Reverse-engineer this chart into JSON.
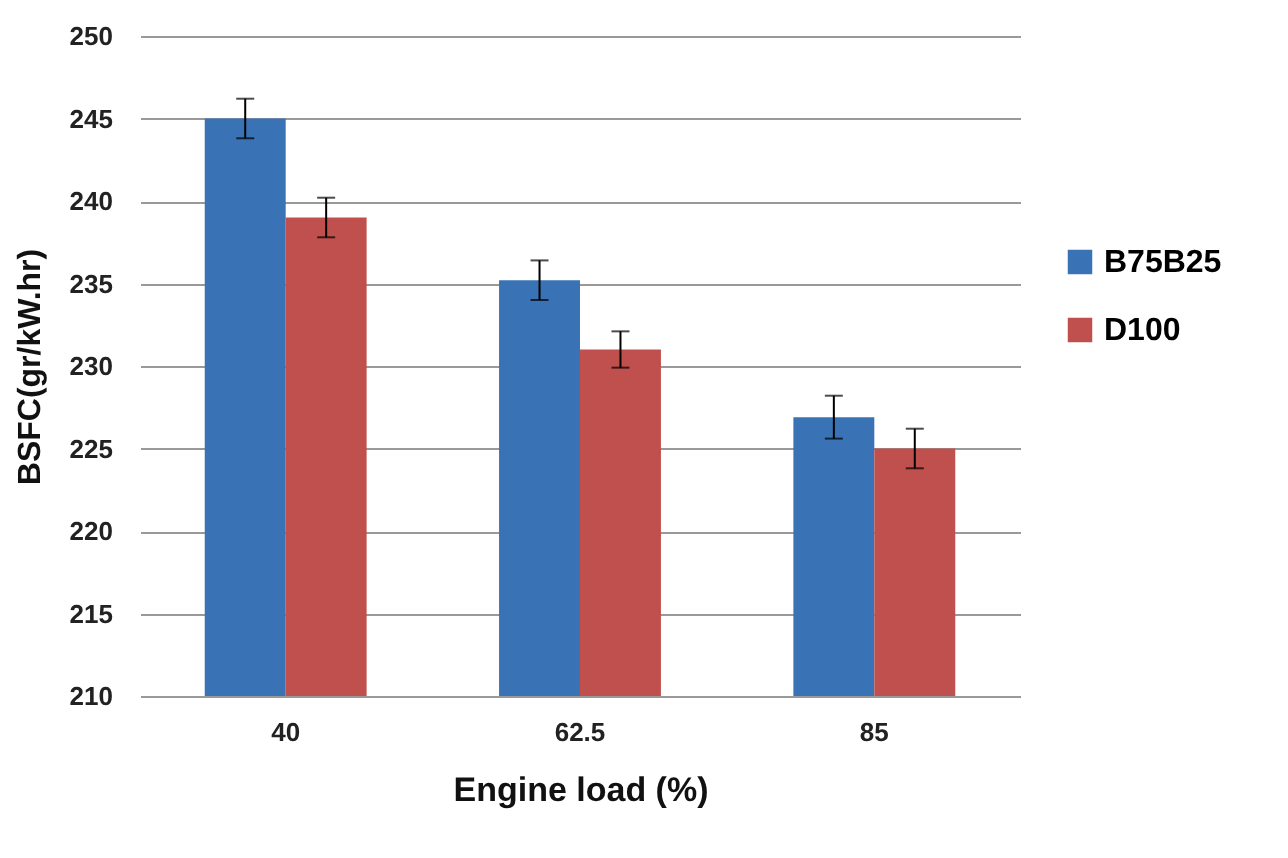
{
  "chart_data": {
    "type": "bar",
    "xlabel": "Engine load (%)",
    "ylabel": "BSFC(gr/kW.hr)",
    "categories": [
      "40",
      "62.5",
      "85"
    ],
    "series": [
      {
        "name": "B75B25",
        "color": "#3a73b5",
        "values": [
          245,
          235.2,
          226.9
        ],
        "errors": [
          1.2,
          1.2,
          1.3
        ]
      },
      {
        "name": "D100",
        "color": "#c0504d",
        "values": [
          239,
          231,
          225
        ],
        "errors": [
          1.2,
          1.1,
          1.2
        ]
      }
    ],
    "ylim": [
      210,
      250
    ],
    "yticks": [
      210,
      215,
      220,
      225,
      230,
      235,
      240,
      245,
      250
    ],
    "grid": "y",
    "legend": "right"
  }
}
